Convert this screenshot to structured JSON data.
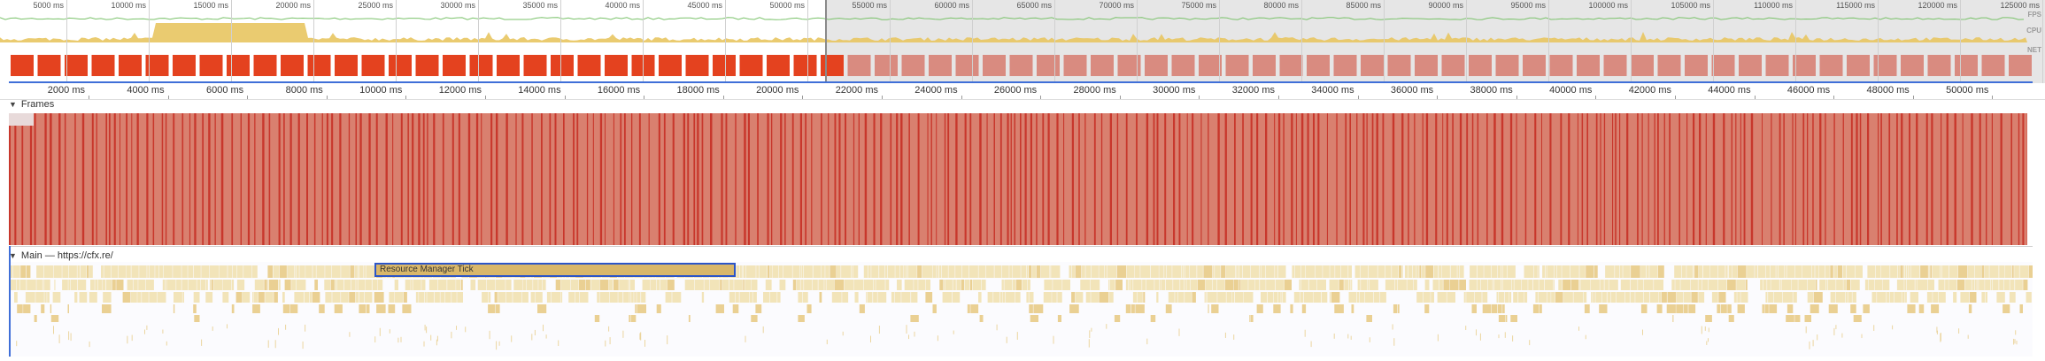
{
  "overview": {
    "tick_labels": [
      "5000 ms",
      "10000 ms",
      "15000 ms",
      "20000 ms",
      "25000 ms",
      "30000 ms",
      "35000 ms",
      "40000 ms",
      "45000 ms",
      "50000 ms",
      "55000 ms",
      "60000 ms",
      "65000 ms",
      "70000 ms",
      "75000 ms",
      "80000 ms",
      "85000 ms",
      "90000 ms",
      "95000 ms",
      "100000 ms",
      "105000 ms",
      "110000 ms",
      "115000 ms",
      "120000 ms",
      "125000 ms"
    ],
    "lanes": {
      "fps": "FPS",
      "cpu": "CPU",
      "net": "NET"
    }
  },
  "main_ruler": {
    "tick_labels": [
      "2000 ms",
      "4000 ms",
      "6000 ms",
      "8000 ms",
      "10000 ms",
      "12000 ms",
      "14000 ms",
      "16000 ms",
      "18000 ms",
      "20000 ms",
      "22000 ms",
      "24000 ms",
      "26000 ms",
      "28000 ms",
      "30000 ms",
      "32000 ms",
      "34000 ms",
      "36000 ms",
      "38000 ms",
      "40000 ms",
      "42000 ms",
      "44000 ms",
      "46000 ms",
      "48000 ms",
      "50000 ms"
    ]
  },
  "sections": {
    "frames": {
      "title": "Frames",
      "collapse": "▼"
    },
    "main": {
      "title": "Main — https://cfx.re/",
      "collapse": "▼"
    }
  },
  "flame": {
    "selected_event": "Resource Manager Tick"
  },
  "colors": {
    "frame_red": "#e4421f",
    "frame_pink": "#d98b80",
    "frame_bar": "#d9806f",
    "scripting_yellow": "#f0dfa8",
    "scripting_dark": "#e6c678",
    "selection_blue": "#2c55c8",
    "cpu_yellow": "#e8c560",
    "fps_green": "#7ac26a"
  }
}
